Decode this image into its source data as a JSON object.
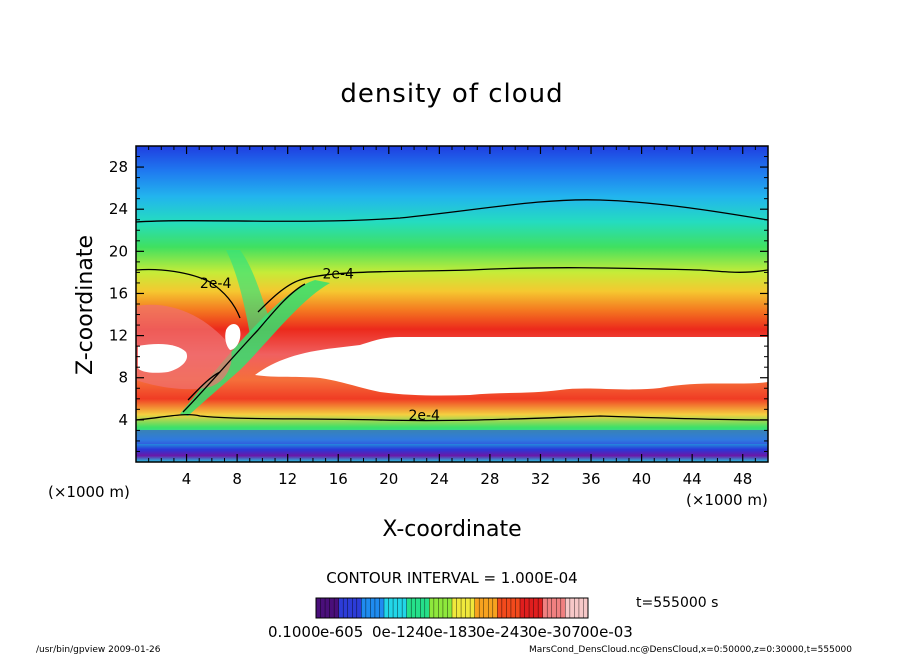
{
  "chart_data": {
    "type": "heatmap",
    "title": "density of cloud",
    "xlabel": "X-coordinate",
    "ylabel": "Z-coordinate",
    "x_unit_label": "(×1000 m)",
    "y_unit_label": "(×1000 m)",
    "xlim": [
      0,
      50
    ],
    "ylim": [
      0,
      30
    ],
    "x_ticks": [
      "4",
      "8",
      "12",
      "16",
      "20",
      "24",
      "28",
      "32",
      "36",
      "40",
      "44",
      "48"
    ],
    "x_tick_values": [
      4,
      8,
      12,
      16,
      20,
      24,
      28,
      32,
      36,
      40,
      44,
      48
    ],
    "y_ticks": [
      "4",
      "8",
      "12",
      "16",
      "20",
      "24",
      "28"
    ],
    "y_tick_values": [
      4,
      8,
      12,
      16,
      20,
      24,
      28
    ],
    "contour_labels": [
      {
        "text": "2e-4",
        "x": 6.3,
        "y": 16.5
      },
      {
        "text": "2e-4",
        "x": 16.0,
        "y": 17.4
      },
      {
        "text": "2e-4",
        "x": 22.8,
        "y": 4.0
      }
    ],
    "contour_interval_text": "CONTOUR INTERVAL = 1.000E-04",
    "time_text": "t=555000 s",
    "colorbar_labels": [
      "0.1000",
      "e-605",
      "0e-124",
      "0e-183",
      "0e-243",
      "0e-307",
      "00e-03"
    ],
    "colormap_colors": [
      "#4a0f7a",
      "#2c3cd8",
      "#1f8cf0",
      "#22d6e8",
      "#25e08a",
      "#8ee83c",
      "#f0e83c",
      "#f7a21f",
      "#f24a1c",
      "#e01e1e",
      "#f08080",
      "#f7c8c8"
    ]
  },
  "footer": {
    "left": "/usr/bin/gpview  2009-01-26",
    "right": "MarsCond_DensCloud.nc@DensCloud,x=0:50000,z=0:30000,t=555000"
  }
}
